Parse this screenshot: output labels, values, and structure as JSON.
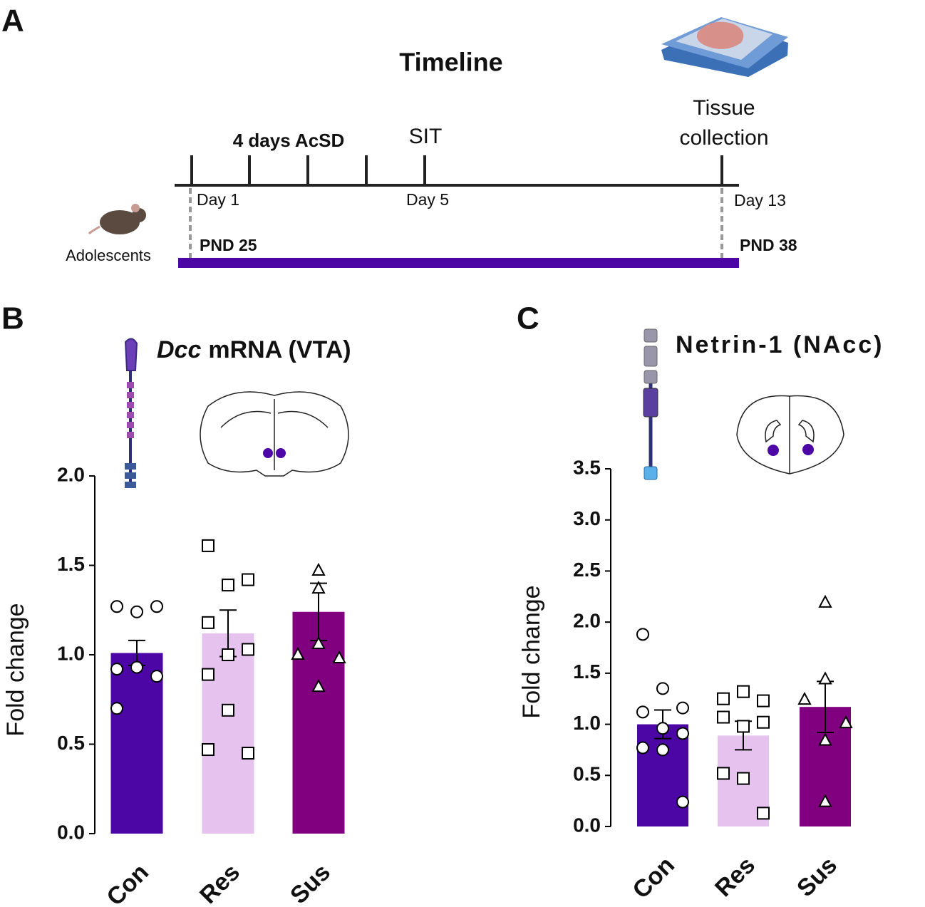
{
  "timeline": {
    "panel": "A",
    "title": "Timeline",
    "stress": "4 days AcSD",
    "test": "SIT",
    "collection": [
      "Tissue",
      "collection"
    ],
    "days": [
      "Day 1",
      "Day 5",
      "Day 13"
    ],
    "pnd": [
      "PND 25",
      "PND 38"
    ],
    "subjects": "Adolescents"
  },
  "panels": [
    "B",
    "C"
  ],
  "chart_data": [
    {
      "type": "bar",
      "title_gene": "Dcc",
      "title": "mRNA (VTA)",
      "y_label": "Fold change",
      "categories": [
        "Con",
        "Res",
        "Sus"
      ],
      "values": [
        1.01,
        1.12,
        1.24
      ],
      "errors": [
        0.07,
        0.13,
        0.16
      ],
      "colors": [
        "#4c06a6",
        "#e6c3ee",
        "#800080"
      ],
      "markers": [
        "circle",
        "square",
        "triangle"
      ],
      "points": [
        [
          1.27,
          1.24,
          1.27,
          0.92,
          0.93,
          0.88,
          0.7
        ],
        [
          1.61,
          1.39,
          1.42,
          1.18,
          1.0,
          1.03,
          0.89,
          0.69,
          0.45,
          0.47
        ],
        [
          1.47,
          1.37,
          1.0,
          0.98,
          1.06,
          0.82
        ]
      ],
      "ylim": [
        0,
        2.0
      ],
      "yticks": [
        {
          "value": 0,
          "label": "0.0"
        },
        0.5,
        {
          "value": 1.0,
          "label": "1.0"
        },
        1.5,
        {
          "value": 2.0,
          "label": "2.0"
        }
      ]
    },
    {
      "type": "bar",
      "title": "Netrin-1 (NAcc)",
      "y_label": "Fold change",
      "categories": [
        "Con",
        "Res",
        "Sus"
      ],
      "values": [
        1.0,
        0.89,
        1.17
      ],
      "errors": [
        0.14,
        0.14,
        0.25
      ],
      "colors": [
        "#4c06a6",
        "#e6c3ee",
        "#800080"
      ],
      "markers": [
        "circle",
        "square",
        "triangle"
      ],
      "points": [
        [
          1.88,
          1.35,
          1.16,
          1.12,
          0.96,
          0.91,
          0.77,
          0.75,
          0.24
        ],
        [
          1.25,
          1.32,
          1.23,
          1.07,
          0.98,
          1.02,
          0.52,
          0.47,
          0.13
        ],
        [
          2.19,
          1.44,
          1.24,
          1.01,
          0.84,
          0.24
        ]
      ],
      "ylim": [
        0,
        3.5
      ],
      "yticks": [
        {
          "value": 0,
          "label": "0.0"
        },
        0.5,
        {
          "value": 1.0,
          "label": "1.0"
        },
        1.5,
        {
          "value": 2.0,
          "label": "2.0"
        },
        2.5,
        {
          "value": 3.0,
          "label": "3.0"
        },
        3.5
      ]
    }
  ]
}
